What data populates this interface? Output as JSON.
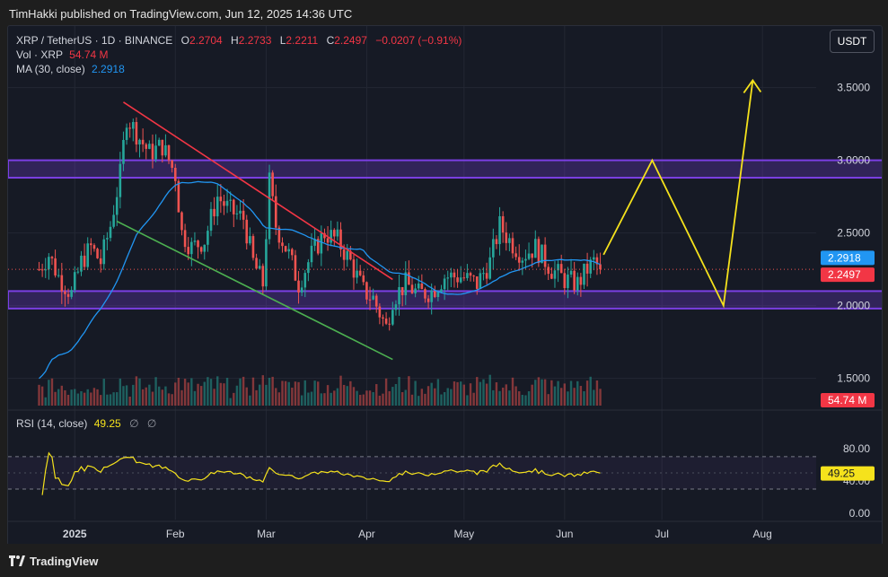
{
  "header": {
    "published": "TimHakki published on TradingView.com, Jun 12, 2025 14:36 UTC"
  },
  "footer": {
    "brand": "TradingView",
    "logo_icon": "tradingview-logo-icon"
  },
  "toolbar": {
    "currency": "USDT"
  },
  "legend": {
    "symbol": "XRP / TetherUS · 1D · BINANCE",
    "open_key": "O",
    "open": "2.2704",
    "high_key": "H",
    "high": "2.2733",
    "low_key": "L",
    "low": "2.2211",
    "close_key": "C",
    "close": "2.2497",
    "change": "−0.0207 (−0.91%)",
    "vol_label": "Vol · XRP",
    "vol_value": "54.74 M",
    "ma_label": "MA (30, close)",
    "ma_value": "2.2918"
  },
  "rsi_legend": {
    "label": "RSI (14, close)",
    "value": "49.25",
    "empty1": "∅",
    "empty2": "∅"
  },
  "colors": {
    "up": "#26a69a",
    "down": "#ef5350",
    "ma": "#2196f3",
    "zone": "#7b3fe4",
    "resistance_line": "#f23645",
    "support_line": "#4caf50",
    "projection": "#f5e21c",
    "rsi": "#f5e21c"
  },
  "chart_data": {
    "type": "candlestick",
    "price_axis": {
      "ticks": [
        "3.5000",
        "3.0000",
        "2.5000",
        "2.0000",
        "1.5000"
      ],
      "tick_values": [
        3.5,
        3.0,
        2.5,
        2.0,
        1.5
      ],
      "ylim": [
        1.3,
        3.8
      ]
    },
    "price_labels": [
      {
        "text": "2.2918",
        "value": 2.2918,
        "color": "#2196f3"
      },
      {
        "text": "2.2497",
        "value": 2.2497,
        "color": "#f23645"
      },
      {
        "text": "54.74 M",
        "color": "#f23645",
        "pane": "volume"
      }
    ],
    "time_axis": {
      "labels": [
        "2025",
        "Feb",
        "Mar",
        "Apr",
        "May",
        "Jun",
        "Jul",
        "Aug"
      ],
      "label_dates": [
        "2025-01-01",
        "2025-02-01",
        "2025-03-01",
        "2025-04-01",
        "2025-05-01",
        "2025-06-01",
        "2025-07-01",
        "2025-08-01"
      ]
    },
    "series_start_date": "2024-12-21",
    "ohlc_close_anchors": [
      {
        "d": "2024-12-21",
        "c": 2.25
      },
      {
        "d": "2024-12-24",
        "c": 2.35
      },
      {
        "d": "2024-12-27",
        "c": 2.2
      },
      {
        "d": "2024-12-31",
        "c": 2.08
      },
      {
        "d": "2025-01-03",
        "c": 2.3
      },
      {
        "d": "2025-01-06",
        "c": 2.4
      },
      {
        "d": "2025-01-09",
        "c": 2.3
      },
      {
        "d": "2025-01-12",
        "c": 2.55
      },
      {
        "d": "2025-01-15",
        "c": 2.9
      },
      {
        "d": "2025-01-17",
        "c": 3.3
      },
      {
        "d": "2025-01-21",
        "c": 3.15
      },
      {
        "d": "2025-01-24",
        "c": 3.05
      },
      {
        "d": "2025-01-28",
        "c": 3.1
      },
      {
        "d": "2025-02-01",
        "c": 2.9
      },
      {
        "d": "2025-02-03",
        "c": 2.5
      },
      {
        "d": "2025-02-06",
        "c": 2.4
      },
      {
        "d": "2025-02-10",
        "c": 2.45
      },
      {
        "d": "2025-02-14",
        "c": 2.75
      },
      {
        "d": "2025-02-18",
        "c": 2.65
      },
      {
        "d": "2025-02-22",
        "c": 2.6
      },
      {
        "d": "2025-02-25",
        "c": 2.3
      },
      {
        "d": "2025-02-28",
        "c": 2.15
      },
      {
        "d": "2025-03-02",
        "c": 2.85
      },
      {
        "d": "2025-03-04",
        "c": 2.55
      },
      {
        "d": "2025-03-08",
        "c": 2.35
      },
      {
        "d": "2025-03-11",
        "c": 2.15
      },
      {
        "d": "2025-03-15",
        "c": 2.35
      },
      {
        "d": "2025-03-19",
        "c": 2.5
      },
      {
        "d": "2025-03-23",
        "c": 2.45
      },
      {
        "d": "2025-03-27",
        "c": 2.3
      },
      {
        "d": "2025-03-31",
        "c": 2.1
      },
      {
        "d": "2025-04-03",
        "c": 2.05
      },
      {
        "d": "2025-04-07",
        "c": 1.85
      },
      {
        "d": "2025-04-09",
        "c": 2.05
      },
      {
        "d": "2025-04-13",
        "c": 2.15
      },
      {
        "d": "2025-04-17",
        "c": 2.08
      },
      {
        "d": "2025-04-21",
        "c": 2.1
      },
      {
        "d": "2025-04-25",
        "c": 2.2
      },
      {
        "d": "2025-04-30",
        "c": 2.2
      },
      {
        "d": "2025-05-05",
        "c": 2.15
      },
      {
        "d": "2025-05-09",
        "c": 2.3
      },
      {
        "d": "2025-05-12",
        "c": 2.55
      },
      {
        "d": "2025-05-15",
        "c": 2.45
      },
      {
        "d": "2025-05-19",
        "c": 2.35
      },
      {
        "d": "2025-05-23",
        "c": 2.4
      },
      {
        "d": "2025-05-28",
        "c": 2.25
      },
      {
        "d": "2025-06-01",
        "c": 2.18
      },
      {
        "d": "2025-06-05",
        "c": 2.15
      },
      {
        "d": "2025-06-08",
        "c": 2.25
      },
      {
        "d": "2025-06-10",
        "c": 2.3
      },
      {
        "d": "2025-06-12",
        "c": 2.2497
      }
    ],
    "ma_period": 30,
    "zones": [
      {
        "name": "resistance-zone",
        "top": 3.0,
        "bottom": 2.88
      },
      {
        "name": "support-zone",
        "top": 2.1,
        "bottom": 1.98
      }
    ],
    "trendlines": [
      {
        "name": "descending-resistance",
        "from": {
          "d": "2025-01-16",
          "p": 3.4
        },
        "to": {
          "d": "2025-04-09",
          "p": 2.18
        }
      },
      {
        "name": "descending-support",
        "from": {
          "d": "2025-01-14",
          "p": 2.58
        },
        "to": {
          "d": "2025-04-09",
          "p": 1.63
        }
      }
    ],
    "projection": {
      "points": [
        {
          "d": "2025-06-13",
          "p": 2.35
        },
        {
          "d": "2025-06-28",
          "p": 3.0
        },
        {
          "d": "2025-07-20",
          "p": 2.0
        },
        {
          "d": "2025-07-29",
          "p": 3.55
        }
      ]
    },
    "volume": {
      "last": 54.74,
      "unit": "M"
    },
    "rsi": {
      "label": "RSI (14, close)",
      "last": 49.25,
      "levels": [
        80,
        40,
        0
      ],
      "tick_labels": [
        "80.00",
        "40.00",
        "0.00"
      ],
      "band": [
        70,
        30
      ]
    }
  }
}
